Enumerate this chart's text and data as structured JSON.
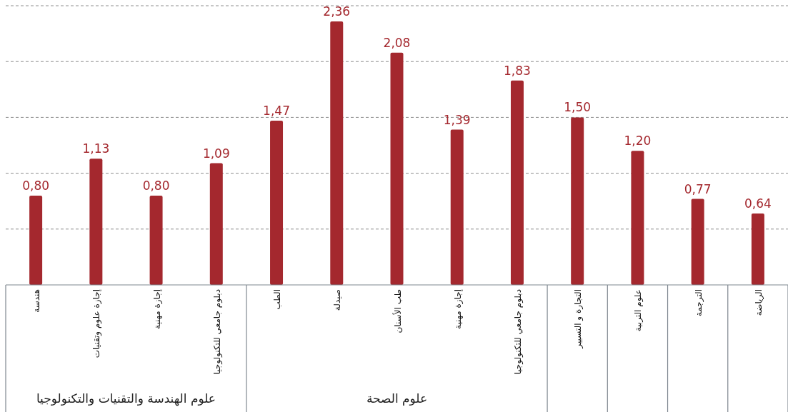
{
  "chart_data": {
    "type": "bar",
    "categories": [
      "هندسة",
      "إجازة علوم وتقنيات",
      "إجازة مهنية",
      "دبلوم جامعي للتكنولوجيا",
      "الطب",
      "صيدلة",
      "طب الأسنان",
      "إجازة مهنية",
      "دبلوم جامعي للتكنولوجيا",
      "التجارة و التسيير",
      "علوم التربية",
      "الترجمة",
      "الرياضة"
    ],
    "values": [
      0.8,
      1.13,
      0.8,
      1.09,
      1.47,
      2.36,
      2.08,
      1.39,
      1.83,
      1.5,
      1.2,
      0.77,
      0.64
    ],
    "value_labels": [
      "0,80",
      "1,13",
      "0,80",
      "1,09",
      "1,47",
      "2,36",
      "2,08",
      "1,39",
      "1,83",
      "1,50",
      "1,20",
      "0,77",
      "0,64"
    ],
    "color": "#a4282e",
    "ylim": [
      0,
      2.5
    ],
    "yticks": [
      {
        "value": 0.5,
        "label": null
      },
      {
        "value": 1,
        "label": null
      },
      {
        "value": 1.5,
        "label": null
      },
      {
        "value": 2,
        "label": null
      },
      {
        "value": 2.5,
        "label": null
      }
    ],
    "grid": "y",
    "tick_labels": "x",
    "annotations": [
      "علوم الهندسة والتقنيات والتكنولوجيا",
      "علوم الصحة"
    ]
  }
}
